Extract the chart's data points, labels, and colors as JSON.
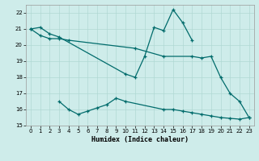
{
  "xlabel": "Humidex (Indice chaleur)",
  "bg_color": "#ceecea",
  "grid_color": "#b0d8d4",
  "line_color": "#006b6b",
  "xlim": [
    -0.5,
    23.5
  ],
  "ylim": [
    15,
    22.5
  ],
  "yticks": [
    15,
    16,
    17,
    18,
    19,
    20,
    21,
    22
  ],
  "xticks": [
    0,
    1,
    2,
    3,
    4,
    5,
    6,
    7,
    8,
    9,
    10,
    11,
    12,
    13,
    14,
    15,
    16,
    17,
    18,
    19,
    20,
    21,
    22,
    23
  ],
  "line1_x": [
    0,
    1,
    2,
    3,
    10,
    11,
    12,
    13,
    14,
    15,
    16,
    17
  ],
  "line1_y": [
    21.0,
    21.1,
    20.7,
    20.5,
    18.2,
    18.0,
    19.3,
    21.1,
    20.9,
    22.2,
    21.4,
    20.3
  ],
  "line2_x": [
    0,
    1,
    2,
    3,
    4,
    11,
    14,
    17,
    18,
    19,
    20,
    21,
    22,
    23
  ],
  "line2_y": [
    21.0,
    20.6,
    20.4,
    20.4,
    20.3,
    19.8,
    19.3,
    19.3,
    19.2,
    19.3,
    18.0,
    17.0,
    16.5,
    15.5
  ],
  "line3_x": [
    3,
    4,
    5,
    6,
    7,
    8,
    9,
    10,
    14,
    15,
    16,
    17,
    18,
    19,
    20,
    21,
    22,
    23
  ],
  "line3_y": [
    16.5,
    16.0,
    15.7,
    15.9,
    16.1,
    16.3,
    16.7,
    16.5,
    16.0,
    16.0,
    15.9,
    15.8,
    15.7,
    15.6,
    15.5,
    15.45,
    15.4,
    15.5
  ]
}
